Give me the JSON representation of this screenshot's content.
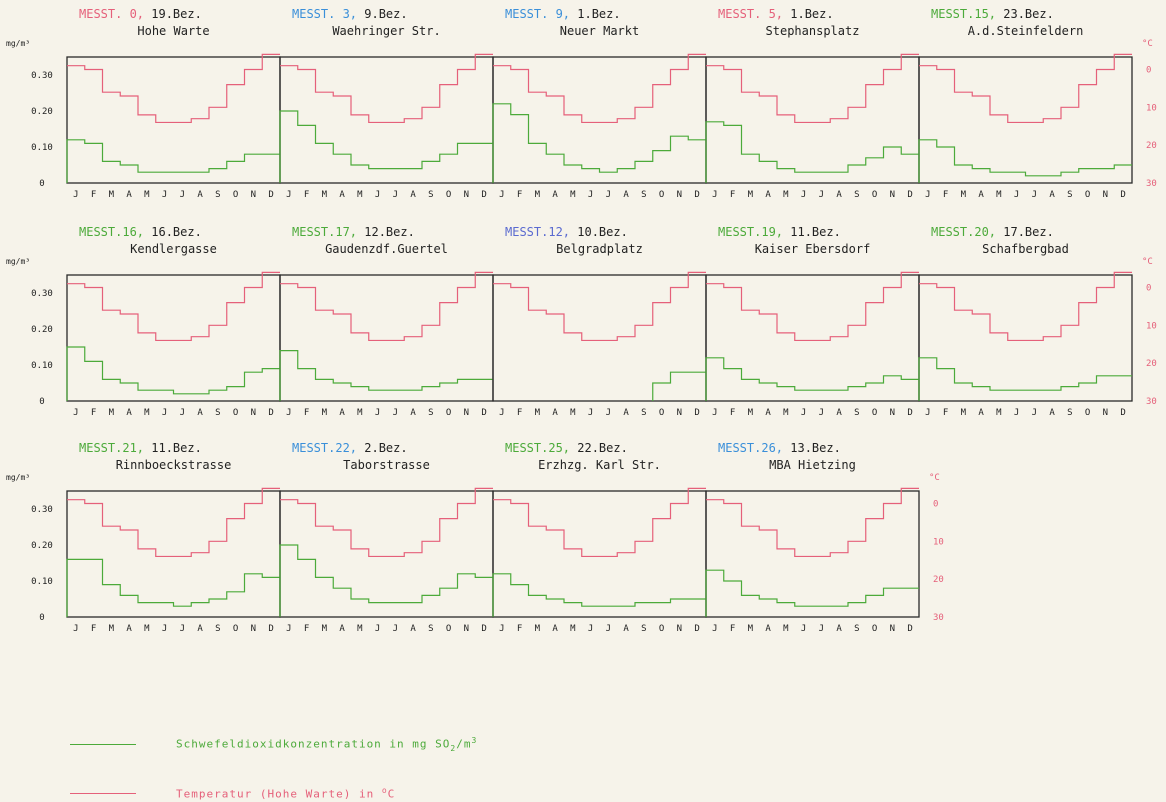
{
  "chart_data": {
    "type": "line",
    "left_unit": "mg/m³",
    "right_unit": "°C",
    "months": [
      "J",
      "F",
      "M",
      "A",
      "M",
      "J",
      "J",
      "A",
      "S",
      "O",
      "N",
      "D"
    ],
    "left_ticks": [
      "0.30",
      "0.20",
      "0.10",
      "0"
    ],
    "right_ticks": [
      "0",
      "10",
      "20",
      "30"
    ],
    "ylim_so2": [
      0,
      0.35
    ],
    "ylim_temp": [
      -3.3,
      30
    ],
    "temperature": [
      -1,
      0,
      6,
      7,
      12,
      14,
      14,
      13,
      10,
      4,
      0,
      -4
    ],
    "colors": {
      "so2": "#4caa3a",
      "temp": "#e5607a",
      "frame": "#2a2a2a",
      "station_red": "#e5607a",
      "station_blue": "#3a8fd9",
      "station_green": "#4caa3a",
      "station_purple": "#5a6ad0"
    },
    "panels": [
      {
        "station": "MESST. 0,",
        "district": "19.Bez.",
        "location": "Hohe Warte",
        "color": "red",
        "so2": [
          0.12,
          0.11,
          0.06,
          0.05,
          0.03,
          0.03,
          0.03,
          0.03,
          0.04,
          0.06,
          0.08,
          0.08
        ]
      },
      {
        "station": "MESST. 3,",
        "district": "9.Bez.",
        "location": "Waehringer Str.",
        "color": "blue",
        "so2": [
          0.2,
          0.16,
          0.11,
          0.08,
          0.05,
          0.04,
          0.04,
          0.04,
          0.06,
          0.08,
          0.11,
          0.11
        ]
      },
      {
        "station": "MESST. 9,",
        "district": "1.Bez.",
        "location": "Neuer Markt",
        "color": "blue",
        "so2": [
          0.22,
          0.19,
          0.11,
          0.08,
          0.05,
          0.04,
          0.03,
          0.04,
          0.06,
          0.09,
          0.13,
          0.12
        ]
      },
      {
        "station": "MESST. 5,",
        "district": "1.Bez.",
        "location": "Stephansplatz",
        "color": "red",
        "so2": [
          0.17,
          0.16,
          0.08,
          0.06,
          0.04,
          0.03,
          0.03,
          0.03,
          0.05,
          0.07,
          0.1,
          0.08
        ]
      },
      {
        "station": "MESST.15,",
        "district": "23.Bez.",
        "location": "A.d.Steinfeldern",
        "color": "green",
        "so2": [
          0.12,
          0.1,
          0.05,
          0.04,
          0.03,
          0.03,
          0.02,
          0.02,
          0.03,
          0.04,
          0.04,
          0.05
        ]
      },
      {
        "station": "MESST.16,",
        "district": "16.Bez.",
        "location": "Kendlergasse",
        "color": "green",
        "so2": [
          0.15,
          0.11,
          0.06,
          0.05,
          0.03,
          0.03,
          0.02,
          0.02,
          0.03,
          0.04,
          0.08,
          0.09
        ]
      },
      {
        "station": "MESST.17,",
        "district": "12.Bez.",
        "location": "Gaudenzdf.Guertel",
        "color": "green",
        "so2": [
          0.14,
          0.09,
          0.06,
          0.05,
          0.04,
          0.03,
          0.03,
          0.03,
          0.04,
          0.05,
          0.06,
          0.06
        ]
      },
      {
        "station": "MESST.12,",
        "district": "10.Bez.",
        "location": "Belgradplatz",
        "color": "purple",
        "so2": [
          null,
          null,
          null,
          null,
          null,
          null,
          null,
          null,
          null,
          0.05,
          0.08,
          0.08
        ]
      },
      {
        "station": "MESST.19,",
        "district": "11.Bez.",
        "location": "Kaiser Ebersdorf",
        "color": "green",
        "so2": [
          0.12,
          0.09,
          0.06,
          0.05,
          0.04,
          0.03,
          0.03,
          0.03,
          0.04,
          0.05,
          0.07,
          0.06
        ]
      },
      {
        "station": "MESST.20,",
        "district": "17.Bez.",
        "location": "Schafbergbad",
        "color": "green",
        "so2": [
          0.12,
          0.09,
          0.05,
          0.04,
          0.03,
          0.03,
          0.03,
          0.03,
          0.04,
          0.05,
          0.07,
          0.07
        ]
      },
      {
        "station": "MESST.21,",
        "district": "11.Bez.",
        "location": "Rinnboeckstrasse",
        "color": "green",
        "so2": [
          0.16,
          0.16,
          0.09,
          0.06,
          0.04,
          0.04,
          0.03,
          0.04,
          0.05,
          0.07,
          0.12,
          0.11
        ]
      },
      {
        "station": "MESST.22,",
        "district": "2.Bez.",
        "location": "Taborstrasse",
        "color": "blue",
        "so2": [
          0.2,
          0.16,
          0.11,
          0.08,
          0.05,
          0.04,
          0.04,
          0.04,
          0.06,
          0.08,
          0.12,
          0.11
        ]
      },
      {
        "station": "MESST.25,",
        "district": "22.Bez.",
        "location": "Erzhzg. Karl Str.",
        "color": "green",
        "so2": [
          0.12,
          0.09,
          0.06,
          0.05,
          0.04,
          0.03,
          0.03,
          0.03,
          0.04,
          0.04,
          0.05,
          0.05
        ]
      },
      {
        "station": "MESST.26,",
        "district": "13.Bez.",
        "location": "MBA Hietzing",
        "color": "blue",
        "so2": [
          0.13,
          0.1,
          0.06,
          0.05,
          0.04,
          0.03,
          0.03,
          0.03,
          0.04,
          0.06,
          0.08,
          0.08
        ]
      }
    ],
    "legend": {
      "so2_label": "Schwefeldioxidkonzentration in mg SO",
      "so2_sub": "2",
      "so2_mid": "/m",
      "so2_sup": "3",
      "temp_label": "Temperatur (Hohe Warte) in ",
      "temp_sup": "o",
      "temp_unit": "C"
    }
  }
}
